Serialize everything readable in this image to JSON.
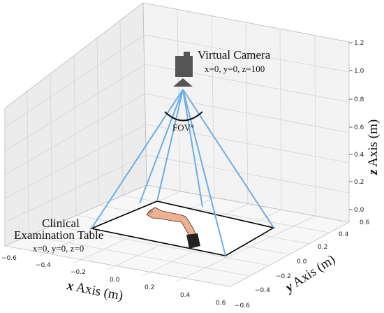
{
  "camera": {
    "title": "Virtual Camera",
    "coords": "x=0, y=0, z=100",
    "fov_label": "FOV°"
  },
  "table": {
    "title_line1": "Clinical",
    "title_line2": "Examination Table",
    "coords": "x=0, y=0, z=0"
  },
  "axes": {
    "x": {
      "var": "x",
      "rest": " Axis (m)",
      "ticks": [
        "−0.6",
        "−0.4",
        "−0.2",
        "0.0",
        "0.2",
        "0.4",
        "0.6"
      ]
    },
    "y": {
      "var": "y",
      "rest": " Axis (m)",
      "ticks": [
        "−0.6",
        "−0.4",
        "−0.2",
        "0.0",
        "0.2",
        "0.4",
        "0.6"
      ]
    },
    "z": {
      "var": "z",
      "rest": " Axis (m)",
      "ticks": [
        "0.0",
        "0.2",
        "0.4",
        "0.6",
        "0.8",
        "1.0",
        "1.2"
      ]
    }
  },
  "colors": {
    "fov_lines": "#6aaee6",
    "pane_left": "#ececec",
    "pane_back": "#f3f3f3",
    "pane_floor": "#f7f7f7",
    "grid": "#d4d4d4",
    "camera_body": "#555555",
    "skin": "#f0b090",
    "sleeve": "#222222"
  }
}
